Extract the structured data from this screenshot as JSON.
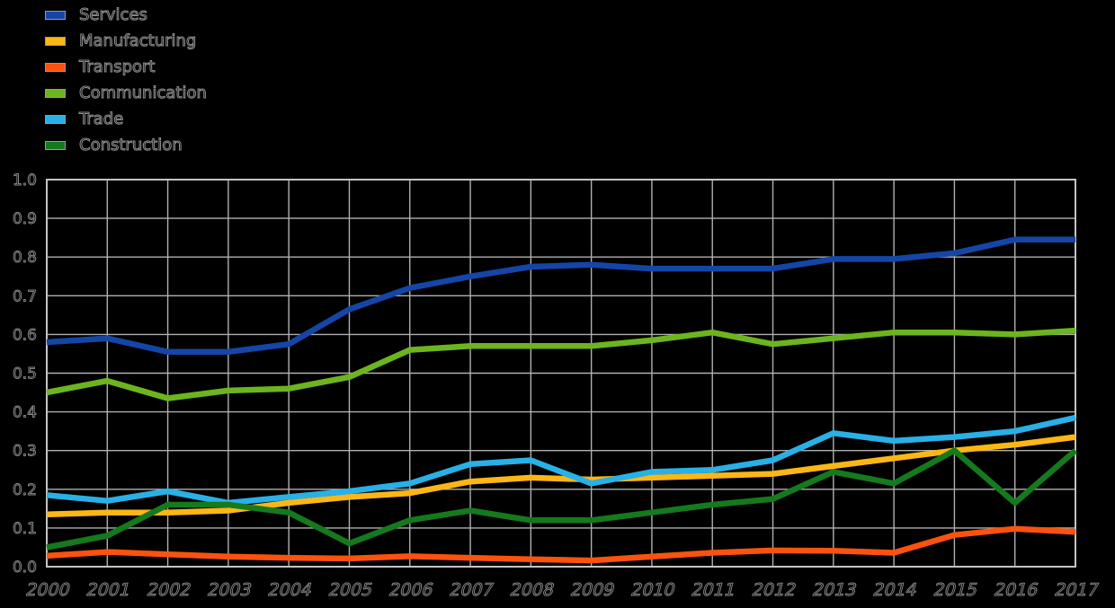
{
  "page": {
    "background_color": "#000000",
    "grid_color": "#b0b0b0",
    "border_color": "#c4c4c4",
    "tick_text_color": "#8f8f8f"
  },
  "axes": {
    "y_ticks": [
      "0.0",
      "0.1",
      "0.2",
      "0.3",
      "0.4",
      "0.5",
      "0.6",
      "0.7",
      "0.8",
      "0.9",
      "1.0"
    ],
    "x_ticks": [
      "2000",
      "2001",
      "2002",
      "2003",
      "2004",
      "2005",
      "2006",
      "2007",
      "2008",
      "2009",
      "2010",
      "2011",
      "2012",
      "2013",
      "2014",
      "2015",
      "2016",
      "2017"
    ]
  },
  "chart_data": {
    "type": "line",
    "title": "",
    "xlabel": "",
    "ylabel": "",
    "ylim": [
      0.0,
      1.0
    ],
    "ytick_step": 0.1,
    "grid": true,
    "legend_position": "top-left",
    "x": [
      2000,
      2001,
      2002,
      2003,
      2004,
      2005,
      2006,
      2007,
      2008,
      2009,
      2010,
      2011,
      2012,
      2013,
      2014,
      2015,
      2016,
      2017
    ],
    "series": [
      {
        "name": "Services",
        "color": "#1446a8",
        "values": [
          0.58,
          0.59,
          0.555,
          0.555,
          0.575,
          0.665,
          0.72,
          0.75,
          0.775,
          0.78,
          0.77,
          0.77,
          0.77,
          0.795,
          0.795,
          0.81,
          0.845,
          0.845
        ]
      },
      {
        "name": "Manufacturing",
        "color": "#fdb714",
        "values": [
          0.135,
          0.14,
          0.14,
          0.145,
          0.165,
          0.18,
          0.19,
          0.22,
          0.23,
          0.225,
          0.23,
          0.235,
          0.24,
          0.26,
          0.28,
          0.3,
          0.315,
          0.335
        ]
      },
      {
        "name": "Transport",
        "color": "#fb520d",
        "values": [
          0.028,
          0.038,
          0.032,
          0.026,
          0.023,
          0.021,
          0.027,
          0.023,
          0.019,
          0.016,
          0.026,
          0.036,
          0.042,
          0.041,
          0.036,
          0.082,
          0.098,
          0.09
        ]
      },
      {
        "name": "Communication",
        "color": "#6cb51e",
        "values": [
          0.45,
          0.48,
          0.435,
          0.455,
          0.46,
          0.49,
          0.56,
          0.57,
          0.57,
          0.57,
          0.585,
          0.605,
          0.575,
          0.59,
          0.605,
          0.605,
          0.6,
          0.61
        ]
      },
      {
        "name": "Trade",
        "color": "#29b0e6",
        "values": [
          0.185,
          0.17,
          0.195,
          0.165,
          0.18,
          0.195,
          0.215,
          0.265,
          0.275,
          0.215,
          0.245,
          0.25,
          0.275,
          0.345,
          0.325,
          0.335,
          0.35,
          0.385
        ]
      },
      {
        "name": "Construction",
        "color": "#15791d",
        "values": [
          0.05,
          0.08,
          0.16,
          0.16,
          0.14,
          0.06,
          0.12,
          0.145,
          0.12,
          0.12,
          0.14,
          0.16,
          0.175,
          0.245,
          0.215,
          0.3,
          0.165,
          0.3
        ]
      }
    ]
  }
}
